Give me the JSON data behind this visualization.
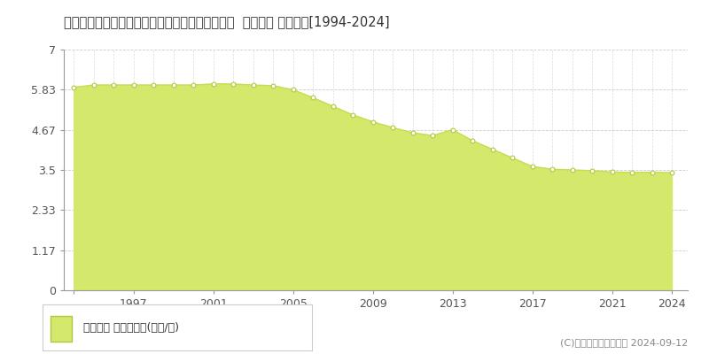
{
  "title": "青森県上北郡六戸町大字犬落瀬字千刈田２番５１  地価公示 地価推移[1994-2024]",
  "years": [
    1994,
    1995,
    1996,
    1997,
    1998,
    1999,
    2000,
    2001,
    2002,
    2003,
    2004,
    2005,
    2006,
    2007,
    2008,
    2009,
    2010,
    2011,
    2012,
    2013,
    2014,
    2015,
    2016,
    2017,
    2018,
    2019,
    2020,
    2021,
    2022,
    2023,
    2024
  ],
  "values": [
    5.9,
    5.97,
    5.97,
    5.97,
    5.97,
    5.97,
    5.97,
    6.0,
    6.0,
    5.97,
    5.95,
    5.83,
    5.6,
    5.35,
    5.1,
    4.9,
    4.73,
    4.58,
    4.5,
    4.67,
    4.35,
    4.1,
    3.85,
    3.6,
    3.52,
    3.5,
    3.48,
    3.44,
    3.43,
    3.43,
    3.42
  ],
  "yticks": [
    0,
    1.17,
    2.33,
    3.5,
    4.67,
    5.83,
    7
  ],
  "ytick_labels": [
    "0",
    "1.17",
    "2.33",
    "3.5",
    "4.67",
    "5.83",
    "7"
  ],
  "xticks": [
    1994,
    1997,
    2001,
    2005,
    2009,
    2013,
    2017,
    2021,
    2024
  ],
  "xtick_labels": [
    "",
    "1997",
    "2001",
    "2005",
    "2009",
    "2013",
    "2017",
    "2021",
    "2024"
  ],
  "ylim": [
    0,
    7
  ],
  "xlim": [
    1993.5,
    2024.8
  ],
  "fill_color": "#d4e96b",
  "line_color": "#c8dc50",
  "marker_face_color": "#ffffff",
  "marker_edge_color": "#b0c840",
  "background_color": "#ffffff",
  "grid_color": "#cccccc",
  "title_fontsize": 10.5,
  "tick_fontsize": 9,
  "legend_label": "地価公示 平均坪単価(万円/坪)",
  "copyright_text": "(C)土地価格ドットコム 2024-09-12"
}
